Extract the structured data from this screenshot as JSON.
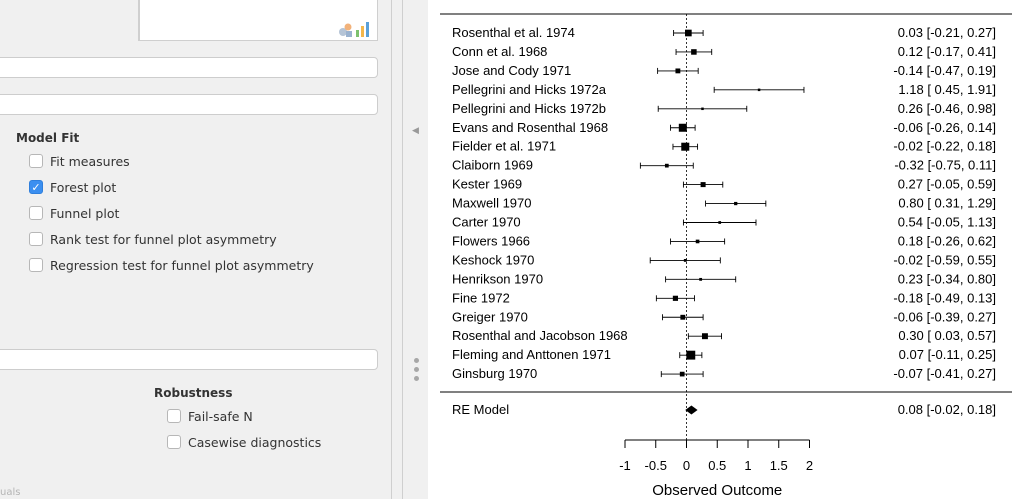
{
  "left_panel": {
    "model_fit_title": "Model Fit",
    "options": [
      {
        "label": "Fit measures",
        "checked": false
      },
      {
        "label": "Forest plot",
        "checked": true
      },
      {
        "label": "Funnel plot",
        "checked": false
      },
      {
        "label": "Rank test for funnel plot asymmetry",
        "checked": false
      },
      {
        "label": "Regression test for funnel plot asymmetry",
        "checked": false
      }
    ],
    "robustness_title": "Robustness",
    "robustness_options": [
      {
        "label": "Fail-safe N",
        "checked": false
      },
      {
        "label": "Casewise diagnostics",
        "checked": false
      }
    ],
    "faded_label": "uals"
  },
  "chart_data": {
    "type": "forest",
    "xlabel": "Observed Outcome",
    "xticks": [
      -1,
      -0.5,
      0,
      0.5,
      1,
      1.5,
      2
    ],
    "xtick_labels": [
      "-1",
      "-0.5",
      "0",
      "0.5",
      "1",
      "1.5",
      "2"
    ],
    "xlim": [
      -1,
      2
    ],
    "studies": [
      {
        "name": "Rosenthal et al. 1974",
        "est": 0.03,
        "lo": -0.21,
        "hi": 0.27,
        "label": "0.03 [-0.21, 0.27]"
      },
      {
        "name": "Conn et al. 1968",
        "est": 0.12,
        "lo": -0.17,
        "hi": 0.41,
        "label": "0.12 [-0.17, 0.41]"
      },
      {
        "name": "Jose and Cody 1971",
        "est": -0.14,
        "lo": -0.47,
        "hi": 0.19,
        "label": "-0.14 [-0.47, 0.19]"
      },
      {
        "name": "Pellegrini and Hicks 1972a",
        "est": 1.18,
        "lo": 0.45,
        "hi": 1.91,
        "label": "1.18 [ 0.45, 1.91]"
      },
      {
        "name": "Pellegrini and Hicks 1972b",
        "est": 0.26,
        "lo": -0.46,
        "hi": 0.98,
        "label": "0.26 [-0.46, 0.98]"
      },
      {
        "name": "Evans and Rosenthal 1968",
        "est": -0.06,
        "lo": -0.26,
        "hi": 0.14,
        "label": "-0.06 [-0.26, 0.14]"
      },
      {
        "name": "Fielder et al. 1971",
        "est": -0.02,
        "lo": -0.22,
        "hi": 0.18,
        "label": "-0.02 [-0.22, 0.18]"
      },
      {
        "name": "Claiborn 1969",
        "est": -0.32,
        "lo": -0.75,
        "hi": 0.11,
        "label": "-0.32 [-0.75, 0.11]"
      },
      {
        "name": "Kester 1969",
        "est": 0.27,
        "lo": -0.05,
        "hi": 0.59,
        "label": "0.27 [-0.05, 0.59]"
      },
      {
        "name": "Maxwell 1970",
        "est": 0.8,
        "lo": 0.31,
        "hi": 1.29,
        "label": "0.80 [ 0.31, 1.29]"
      },
      {
        "name": "Carter 1970",
        "est": 0.54,
        "lo": -0.05,
        "hi": 1.13,
        "label": "0.54 [-0.05, 1.13]"
      },
      {
        "name": "Flowers 1966",
        "est": 0.18,
        "lo": -0.26,
        "hi": 0.62,
        "label": "0.18 [-0.26, 0.62]"
      },
      {
        "name": "Keshock 1970",
        "est": -0.02,
        "lo": -0.59,
        "hi": 0.55,
        "label": "-0.02 [-0.59, 0.55]"
      },
      {
        "name": "Henrikson 1970",
        "est": 0.23,
        "lo": -0.34,
        "hi": 0.8,
        "label": "0.23 [-0.34, 0.80]"
      },
      {
        "name": "Fine 1972",
        "est": -0.18,
        "lo": -0.49,
        "hi": 0.13,
        "label": "-0.18 [-0.49, 0.13]"
      },
      {
        "name": "Greiger 1970",
        "est": -0.06,
        "lo": -0.39,
        "hi": 0.27,
        "label": "-0.06 [-0.39, 0.27]"
      },
      {
        "name": "Rosenthal and Jacobson 1968",
        "est": 0.3,
        "lo": 0.03,
        "hi": 0.57,
        "label": "0.30 [ 0.03, 0.57]"
      },
      {
        "name": "Fleming and Anttonen 1971",
        "est": 0.07,
        "lo": -0.11,
        "hi": 0.25,
        "label": "0.07 [-0.11, 0.25]"
      },
      {
        "name": "Ginsburg 1970",
        "est": -0.07,
        "lo": -0.41,
        "hi": 0.27,
        "label": "-0.07 [-0.41, 0.27]"
      }
    ],
    "summary": {
      "name": "RE Model",
      "est": 0.08,
      "lo": -0.02,
      "hi": 0.18,
      "label": "0.08 [-0.02, 0.18]"
    }
  }
}
